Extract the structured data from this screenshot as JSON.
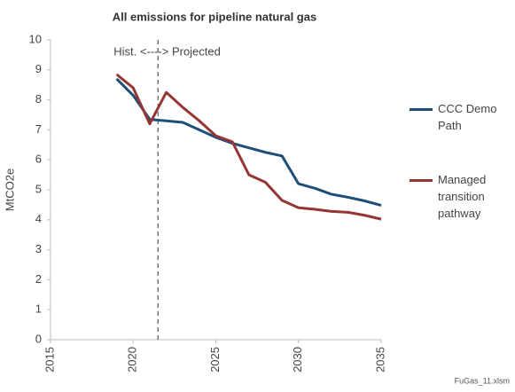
{
  "chart_data": {
    "type": "line",
    "title": "All emissions for pipeline natural gas",
    "y_label": "MtCO2e",
    "source": "FuGas_11.xlsm",
    "annotation": "Hist. <----> Projected",
    "annotation_x": 2021.5,
    "x": [
      2019,
      2020,
      2021,
      2022,
      2023,
      2024,
      2025,
      2026,
      2027,
      2028,
      2029,
      2030,
      2031,
      2032,
      2033,
      2034,
      2035
    ],
    "series": [
      {
        "name": "CCC Demo Path",
        "color": "#1f4e79",
        "values": [
          8.7,
          8.15,
          7.35,
          7.3,
          7.25,
          7.0,
          6.75,
          6.55,
          6.4,
          6.25,
          6.13,
          5.2,
          5.05,
          4.85,
          4.75,
          4.63,
          4.48
        ]
      },
      {
        "name": "Managed transition pathway",
        "color": "#943634",
        "values": [
          8.85,
          8.4,
          7.2,
          8.25,
          7.75,
          7.3,
          6.8,
          6.6,
          5.5,
          5.25,
          4.65,
          4.4,
          4.35,
          4.28,
          4.25,
          4.15,
          4.02
        ]
      }
    ],
    "xlim": [
      2015,
      2035
    ],
    "xticks": [
      2015,
      2020,
      2025,
      2030,
      2035
    ],
    "ylim": [
      0,
      10
    ],
    "yticks": [
      0,
      1,
      2,
      3,
      4,
      5,
      6,
      7,
      8,
      9,
      10
    ],
    "grid": false
  }
}
